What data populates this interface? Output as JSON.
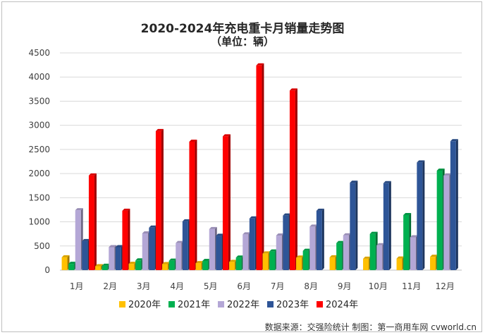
{
  "chart_data": {
    "type": "bar",
    "title": "2020-2024年充电重卡月销量走势图",
    "subtitle": "（单位：辆）",
    "categories": [
      "1月",
      "2月",
      "3月",
      "4月",
      "5月",
      "6月",
      "7月",
      "8月",
      "9月",
      "10月",
      "11月",
      "12月"
    ],
    "ylim": [
      0,
      4500
    ],
    "yticks": [
      0,
      500,
      1000,
      1500,
      2000,
      2500,
      3000,
      3500,
      4000,
      4500
    ],
    "grid": true,
    "legend_position": "bottom",
    "series": [
      {
        "name": "2020年",
        "color": "#FFC000",
        "values": [
          265,
          80,
          130,
          125,
          145,
          170,
          345,
          260,
          265,
          235,
          240,
          275
        ]
      },
      {
        "name": "2021年",
        "color": "#00B050",
        "values": [
          130,
          90,
          200,
          195,
          190,
          260,
          385,
          400,
          560,
          750,
          1140,
          2060
        ]
      },
      {
        "name": "2022年",
        "color": "#B4A7D6",
        "values": [
          1240,
          475,
          760,
          560,
          850,
          740,
          715,
          900,
          720,
          515,
          680,
          1960
        ]
      },
      {
        "name": "2023年",
        "color": "#2E5597",
        "values": [
          600,
          475,
          880,
          1010,
          710,
          1070,
          1130,
          1230,
          1810,
          1800,
          2230,
          2670
        ]
      },
      {
        "name": "2024年",
        "color": "#FF0000",
        "values": [
          1960,
          1230,
          2880,
          2660,
          2770,
          4240,
          3720,
          null,
          null,
          null,
          null,
          null
        ]
      }
    ]
  },
  "source": "数据来源：交强险统计 制图：第一商用车网 cvworld.cn"
}
